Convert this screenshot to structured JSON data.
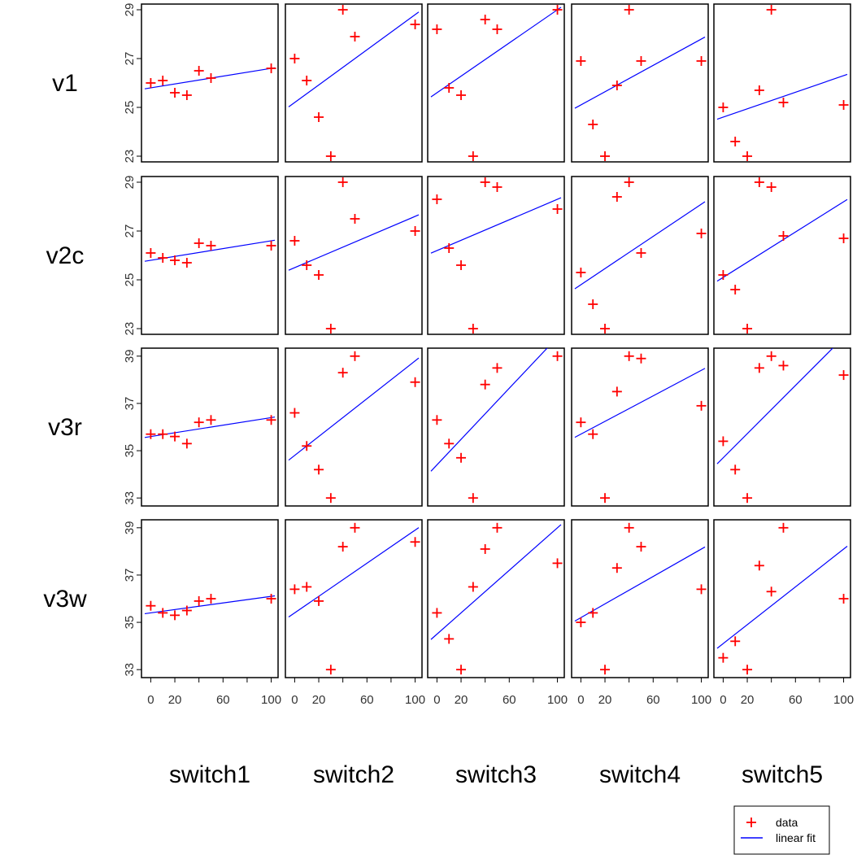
{
  "chart_data": {
    "type": "scatter",
    "rows": [
      "v1",
      "v2c",
      "v3r",
      "v3w"
    ],
    "columns": [
      "switch1",
      "switch2",
      "switch3",
      "switch4",
      "switch5"
    ],
    "x_ticks_major": [
      0,
      20,
      60,
      100
    ],
    "x_ticks_minor": [
      40,
      80
    ],
    "xlim": [
      -5,
      103
    ],
    "y_axes": [
      {
        "ylim": [
          22.9,
          29.1
        ],
        "ticks": [
          23,
          25,
          27,
          29
        ]
      },
      {
        "ylim": [
          22.9,
          29.1
        ],
        "ticks": [
          23,
          25,
          27,
          29
        ]
      },
      {
        "ylim": [
          32.8,
          39.2
        ],
        "ticks": [
          33,
          35,
          37,
          39
        ]
      },
      {
        "ylim": [
          32.8,
          39.2
        ],
        "ticks": [
          33,
          35,
          37,
          39
        ]
      }
    ],
    "panels": [
      [
        {
          "x": [
            0,
            10,
            20,
            30,
            40,
            50,
            100
          ],
          "y": [
            26.0,
            26.1,
            25.6,
            25.5,
            26.5,
            26.2,
            26.6
          ],
          "fit": [
            25.8,
            26.6
          ]
        },
        {
          "x": [
            0,
            10,
            20,
            30,
            40,
            50,
            100
          ],
          "y": [
            27.0,
            26.1,
            24.6,
            23.0,
            29.0,
            27.9,
            28.4
          ],
          "fit": [
            25.2,
            28.8
          ]
        },
        {
          "x": [
            0,
            10,
            20,
            30,
            40,
            50,
            100
          ],
          "y": [
            28.2,
            25.8,
            25.5,
            23.0,
            28.6,
            28.2,
            29.0
          ],
          "fit": [
            25.6,
            29.0
          ]
        },
        {
          "x": [
            0,
            10,
            20,
            30,
            40,
            50,
            100
          ],
          "y": [
            26.9,
            24.3,
            23.0,
            25.9,
            29.0,
            26.9,
            26.9
          ],
          "fit": [
            25.1,
            27.8
          ]
        },
        {
          "x": [
            0,
            10,
            20,
            30,
            40,
            50,
            100
          ],
          "y": [
            25.0,
            23.6,
            23.0,
            25.7,
            29.0,
            25.2,
            25.1
          ],
          "fit": [
            24.6,
            26.3
          ]
        }
      ],
      [
        {
          "x": [
            0,
            10,
            20,
            30,
            40,
            50,
            100
          ],
          "y": [
            26.1,
            25.9,
            25.8,
            25.7,
            26.5,
            26.4,
            26.4
          ],
          "fit": [
            25.8,
            26.6
          ]
        },
        {
          "x": [
            0,
            10,
            20,
            30,
            40,
            50,
            100
          ],
          "y": [
            26.6,
            25.6,
            25.2,
            23.0,
            29.0,
            27.5,
            27.0
          ],
          "fit": [
            25.5,
            27.6
          ]
        },
        {
          "x": [
            0,
            10,
            20,
            30,
            40,
            50,
            100
          ],
          "y": [
            28.3,
            26.3,
            25.6,
            23.0,
            29.0,
            28.8,
            27.9
          ],
          "fit": [
            26.2,
            28.3
          ]
        },
        {
          "x": [
            0,
            10,
            20,
            30,
            40,
            50,
            100
          ],
          "y": [
            25.3,
            24.0,
            23.0,
            28.4,
            29.0,
            26.1,
            26.9
          ],
          "fit": [
            24.8,
            28.1
          ]
        },
        {
          "x": [
            0,
            10,
            20,
            30,
            40,
            50,
            100
          ],
          "y": [
            25.2,
            24.6,
            23.0,
            29.0,
            28.8,
            26.8,
            26.7
          ],
          "fit": [
            25.1,
            28.2
          ]
        }
      ],
      [
        {
          "x": [
            0,
            10,
            20,
            30,
            40,
            50,
            100
          ],
          "y": [
            35.7,
            35.7,
            35.6,
            35.3,
            36.2,
            36.3,
            36.3
          ],
          "fit": [
            35.6,
            36.4
          ]
        },
        {
          "x": [
            0,
            10,
            20,
            30,
            40,
            50,
            100
          ],
          "y": [
            36.6,
            35.2,
            34.2,
            33.0,
            38.3,
            39.0,
            37.9
          ],
          "fit": [
            34.8,
            38.8
          ]
        },
        {
          "x": [
            0,
            10,
            20,
            30,
            40,
            50,
            100
          ],
          "y": [
            36.3,
            35.3,
            34.7,
            33.0,
            37.8,
            38.5,
            39.0
          ],
          "fit": [
            34.4,
            39.8
          ]
        },
        {
          "x": [
            0,
            10,
            20,
            30,
            40,
            50,
            100
          ],
          "y": [
            36.2,
            35.7,
            33.0,
            37.5,
            39.0,
            38.9,
            36.9
          ],
          "fit": [
            35.7,
            38.4
          ]
        },
        {
          "x": [
            0,
            10,
            20,
            30,
            40,
            50,
            100
          ],
          "y": [
            35.4,
            34.2,
            33.0,
            38.5,
            39.0,
            38.6,
            38.2
          ],
          "fit": [
            34.7,
            39.8
          ]
        }
      ],
      [
        {
          "x": [
            0,
            10,
            20,
            30,
            40,
            50,
            100
          ],
          "y": [
            35.7,
            35.4,
            35.3,
            35.5,
            35.9,
            36.0,
            36.0
          ],
          "fit": [
            35.4,
            36.1
          ]
        },
        {
          "x": [
            0,
            10,
            20,
            30,
            40,
            50,
            100
          ],
          "y": [
            36.4,
            36.5,
            35.9,
            33.0,
            38.2,
            39.0,
            38.4
          ],
          "fit": [
            35.4,
            38.9
          ]
        },
        {
          "x": [
            0,
            10,
            20,
            30,
            40,
            50,
            100
          ],
          "y": [
            35.4,
            34.3,
            33.0,
            36.5,
            38.1,
            39.0,
            37.5
          ],
          "fit": [
            34.5,
            39.0
          ]
        },
        {
          "x": [
            0,
            10,
            20,
            30,
            40,
            50,
            100
          ],
          "y": [
            35.0,
            35.4,
            33.0,
            37.3,
            39.0,
            38.2,
            36.4
          ],
          "fit": [
            35.2,
            38.1
          ]
        },
        {
          "x": [
            0,
            10,
            20,
            30,
            40,
            50,
            100
          ],
          "y": [
            33.5,
            34.2,
            33.0,
            37.4,
            36.3,
            39.0,
            36.0
          ],
          "fit": [
            34.1,
            38.1
          ]
        }
      ]
    ],
    "legend": {
      "position": "bottom-right",
      "entries": [
        "data",
        "linear fit"
      ]
    },
    "colors": {
      "data": "#ff0000",
      "fit": "#0000ff",
      "axis": "#000000"
    },
    "grid": false
  }
}
